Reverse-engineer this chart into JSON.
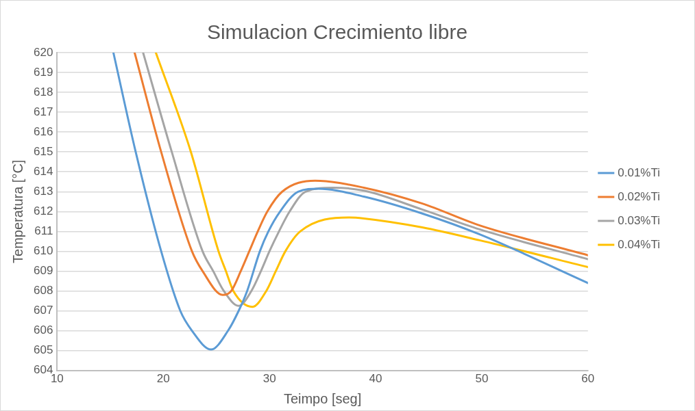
{
  "chart_data": {
    "type": "line",
    "title": "Simulacion Crecimiento libre",
    "xlabel": "Teimpo [seg]",
    "ylabel": "Temperatura [°C]",
    "xlim": [
      10,
      60
    ],
    "xticks": [
      10,
      20,
      30,
      40,
      50,
      60
    ],
    "ylim": [
      604,
      620
    ],
    "yticks": [
      604,
      605,
      606,
      607,
      608,
      609,
      610,
      611,
      612,
      613,
      614,
      615,
      616,
      617,
      618,
      619,
      620
    ],
    "grid": "y",
    "legend": "right",
    "marker": "none",
    "line_style": "solid",
    "series": [
      {
        "name": "0.01%Ti",
        "color": "#5b9bd5",
        "x": [
          15.3,
          17.4,
          19.8,
          21.6,
          22.7,
          24.5,
          26.1,
          27.1,
          27.9,
          29.1,
          29.9,
          31.0,
          32.7,
          34.6,
          38.9,
          44.4,
          49.8,
          60
        ],
        "values": [
          620,
          615,
          610,
          607,
          606,
          605.05,
          606,
          607,
          608,
          610,
          611,
          612,
          613,
          613.15,
          612.75,
          611.9,
          610.85,
          608.4
        ]
      },
      {
        "name": "0.02%Ti",
        "color": "#ed7d31",
        "x": [
          17.3,
          19.8,
          22.7,
          23.7,
          25.6,
          26.4,
          27.3,
          28.1,
          28.9,
          29.8,
          31.2,
          34.3,
          38.9,
          44.4,
          49.8,
          60
        ],
        "values": [
          620,
          615,
          610,
          609,
          607.8,
          608,
          609,
          610,
          611,
          612,
          613,
          613.55,
          613.2,
          612.4,
          611.3,
          609.8
        ]
      },
      {
        "name": "0.03%Ti",
        "color": "#a5a5a5",
        "x": [
          18.1,
          20.8,
          23.7,
          24.7,
          25.7,
          27.1,
          28.3,
          29.2,
          30.0,
          30.9,
          31.9,
          33.4,
          36.0,
          38.9,
          44.4,
          49.8,
          60
        ],
        "values": [
          620,
          615,
          610,
          609,
          608,
          607.25,
          608,
          609,
          610,
          611,
          612,
          613,
          613.2,
          613.05,
          612.1,
          611.1,
          609.6
        ]
      },
      {
        "name": "0.04%Ti",
        "color": "#ffc000",
        "x": [
          19.3,
          22.6,
          25.2,
          25.9,
          26.6,
          28.4,
          29.7,
          30.6,
          31.5,
          32.9,
          37.5,
          38.9,
          44.4,
          49.8,
          60
        ],
        "values": [
          620,
          615,
          610,
          609,
          608,
          607.2,
          608,
          609,
          610,
          611,
          611.7,
          611.65,
          611.2,
          610.55,
          609.2
        ]
      }
    ]
  }
}
